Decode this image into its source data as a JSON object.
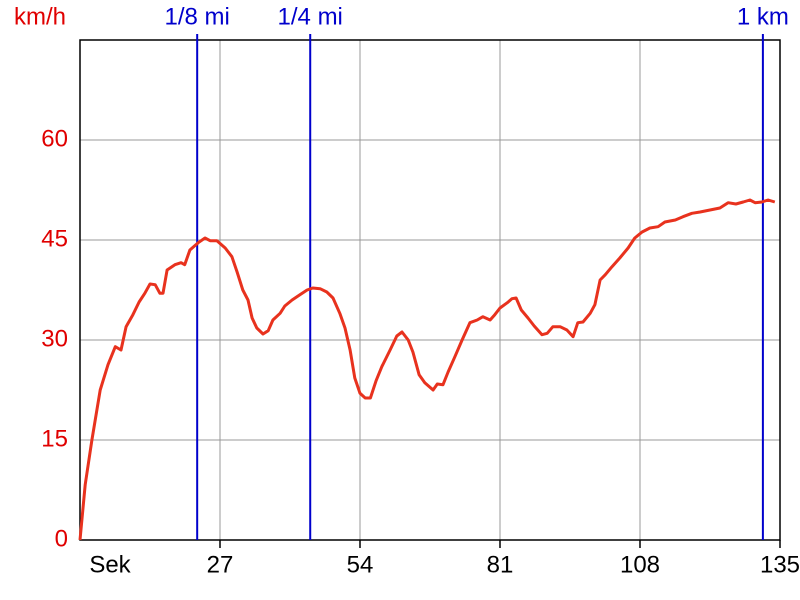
{
  "chart_data": {
    "type": "line",
    "y_label": "km/h",
    "x_label": "Sek",
    "xlim": [
      0,
      135
    ],
    "ylim": [
      0,
      75
    ],
    "xticks": [
      27,
      54,
      81,
      108,
      135
    ],
    "yticks": [
      0,
      15,
      30,
      45,
      60
    ],
    "grid": true,
    "color": "#e8321e",
    "axis_label_color": "#e00000",
    "markers": [
      {
        "label": "1/8 mi",
        "x": 22.6,
        "color": "#0000cc"
      },
      {
        "label": "1/4 mi",
        "x": 44.4,
        "color": "#0000cc"
      },
      {
        "label": "1 km",
        "x": 131.7,
        "color": "#0000cc"
      }
    ],
    "x": [
      0,
      1,
      2.3,
      3.9,
      5.4,
      6.8,
      7.9,
      8.9,
      10.2,
      11.4,
      12.5,
      13.5,
      14.5,
      15.4,
      16,
      16.8,
      18.3,
      19.5,
      20.2,
      21.2,
      22.8,
      24.1,
      25.1,
      26.4,
      28,
      29.3,
      30.3,
      31.4,
      32.4,
      33.2,
      34.1,
      35.3,
      36.3,
      37.2,
      38.6,
      39.5,
      40.9,
      42.4,
      43.8,
      44.9,
      46.3,
      47.6,
      48.8,
      50.1,
      51.1,
      52.1,
      53,
      54,
      55,
      56,
      57.1,
      58.2,
      59.8,
      61.1,
      62.1,
      63.3,
      64.2,
      65.4,
      66.5,
      68.1,
      68.9,
      70,
      71,
      72.3,
      73.7,
      75.2,
      76.6,
      77.7,
      79.1,
      80,
      81,
      82.4,
      83.3,
      84.1,
      85.1,
      86.4,
      87.6,
      89.1,
      90.1,
      91.2,
      92.6,
      93.9,
      95.1,
      96,
      97,
      98.4,
      99.3,
      100.3,
      101.3,
      102.6,
      104.1,
      105.7,
      107,
      108.4,
      109.9,
      111.5,
      112.8,
      114.8,
      116.3,
      118,
      119.6,
      121.5,
      123.4,
      125,
      126.5,
      127.9,
      129.2,
      130.2,
      131.5,
      132.7,
      134
    ],
    "values": [
      0,
      8.3,
      15,
      22.5,
      26.3,
      29,
      28.5,
      32,
      33.8,
      35.7,
      37,
      38.4,
      38.3,
      37,
      37,
      40.5,
      41.3,
      41.6,
      41.3,
      43.5,
      44.6,
      45.3,
      44.9,
      44.9,
      43.8,
      42.5,
      40.2,
      37.5,
      36,
      33.3,
      31.8,
      30.9,
      31.4,
      33,
      34,
      35.1,
      36,
      36.8,
      37.5,
      37.8,
      37.7,
      37.2,
      36.3,
      34,
      31.8,
      28.5,
      24.3,
      22,
      21.3,
      21.3,
      23.9,
      26,
      28.5,
      30.6,
      31.2,
      30,
      28.2,
      24.8,
      23.6,
      22.5,
      23.4,
      23.3,
      25.2,
      27.5,
      30,
      32.6,
      33,
      33.5,
      33,
      33.8,
      34.8,
      35.6,
      36.2,
      36.3,
      34.5,
      33.3,
      32.1,
      30.8,
      31,
      32,
      32,
      31.5,
      30.5,
      32.6,
      32.7,
      34,
      35.3,
      39,
      39.8,
      41,
      42.3,
      43.8,
      45.3,
      46.2,
      46.8,
      47,
      47.7,
      48,
      48.5,
      49,
      49.2,
      49.5,
      49.8,
      50.6,
      50.4,
      50.7,
      51,
      50.6,
      50.7,
      51,
      50.7
    ]
  }
}
